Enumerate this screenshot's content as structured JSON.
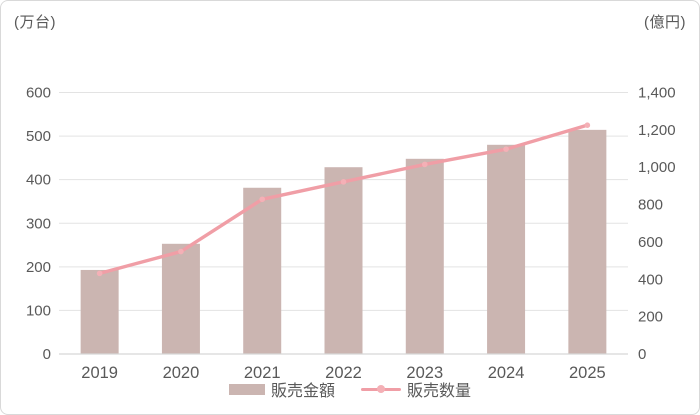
{
  "figure": {
    "background": "#ffffff",
    "border_color": "#d9d9d9",
    "text_color": "#595959",
    "gridline_color": "#e3e3e3",
    "axisline_color": "#d6d6d6"
  },
  "chart_data": {
    "type": "bar",
    "subtype": "combo bar + line, dual axis",
    "categories": [
      "2019",
      "2020",
      "2021",
      "2022",
      "2023",
      "2024",
      "2025"
    ],
    "series": [
      {
        "name": "販売金額",
        "type": "bar",
        "axis": "right",
        "unit": "億円",
        "color": "#cbb5b1",
        "values": [
          450,
          590,
          890,
          1000,
          1045,
          1120,
          1200
        ]
      },
      {
        "name": "販売数量",
        "type": "line",
        "axis": "left",
        "unit": "万台",
        "color": "#f09ea6",
        "marker_color": "#f4b0b6",
        "values": [
          185,
          235,
          355,
          395,
          435,
          470,
          525
        ]
      }
    ],
    "left_axis": {
      "label": "(万台)",
      "min": 0,
      "max": 600,
      "step": 100
    },
    "right_axis": {
      "label": "(億円)",
      "min": 0,
      "max": 1400,
      "step": 200
    },
    "grid": "horizontal gridlines follow left axis",
    "legend_position": "bottom"
  }
}
